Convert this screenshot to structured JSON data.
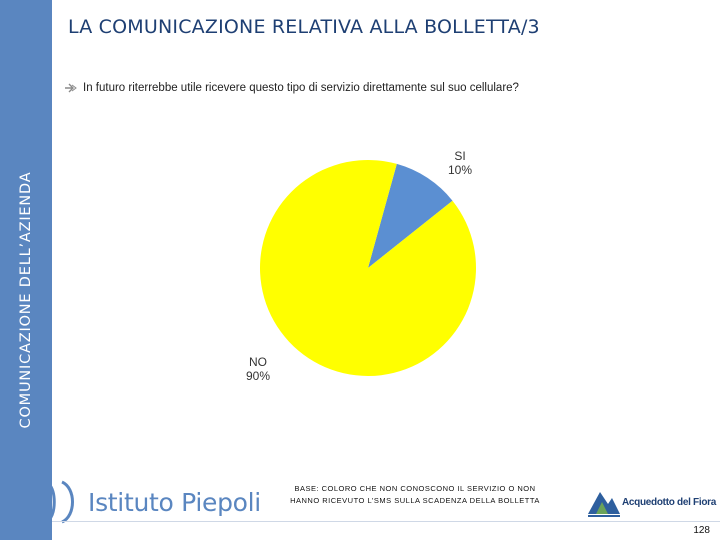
{
  "title": "LA COMUNICAZIONE RELATIVA ALLA BOLLETTA/3",
  "sidebar_label": "COMUNICAZIONE DELL’AZIENDA",
  "question": "In futuro riterrebbe utile ricevere questo tipo di servizio direttamente sul suo cellulare?",
  "base_note_lines": [
    "BASE: COLORO CHE NON CONOSCONO IL SERVIZIO O NON",
    "HANNO RICEVUTO L’SMS SULLA SCADENZA DELLA BOLLETTA"
  ],
  "logo_left_text": "Istituto Piepoli",
  "logo_right_text": "Acquedotto del Fiora",
  "page_number": "128",
  "colors": {
    "sidebar": "#5a86c0",
    "title": "#1e3f73",
    "slice_si": "#5b8fd2",
    "slice_no": "#ffff00"
  },
  "icons": [
    "bullet-arrow-icon",
    "istituto-piepoli-logo-icon",
    "acquedotto-del-fiora-logo-icon"
  ],
  "chart_data": {
    "type": "pie",
    "title": "",
    "slices": [
      {
        "label": "SI",
        "value": 10,
        "value_label": "10%",
        "color": "#5b8fd2"
      },
      {
        "label": "NO",
        "value": 90,
        "value_label": "90%",
        "color": "#ffff00"
      }
    ]
  }
}
